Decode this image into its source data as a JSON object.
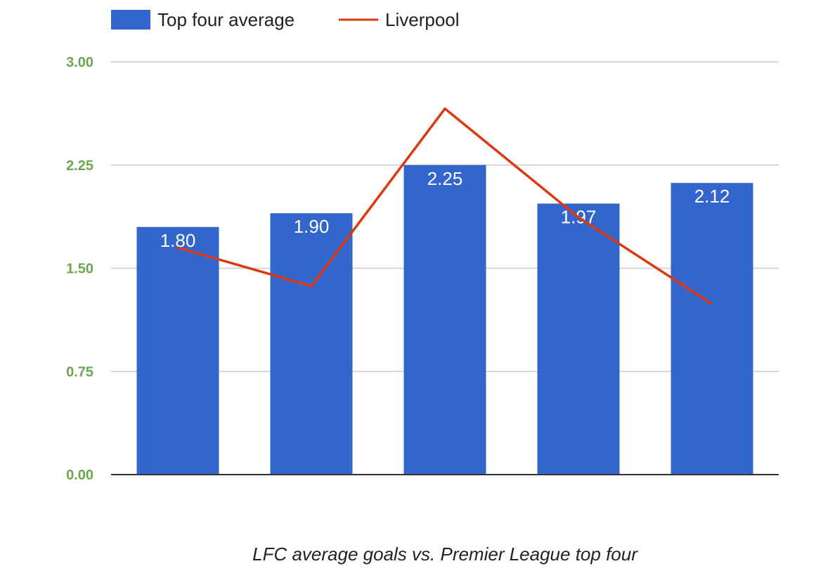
{
  "chart_data": {
    "type": "bar",
    "title": "LFC average goals vs. Premier League top four",
    "xlabel": "",
    "ylabel": "",
    "categories": [
      "",
      "",
      "",
      "",
      ""
    ],
    "series": [
      {
        "name": "Top four average",
        "type": "bar",
        "color": "#3366cc",
        "values": [
          1.8,
          1.9,
          2.25,
          1.97,
          2.12
        ],
        "labels": [
          "1.80",
          "1.90",
          "2.25",
          "1.97",
          "2.12"
        ]
      },
      {
        "name": "Liverpool",
        "type": "line",
        "color": "#dc3912",
        "values": [
          1.65,
          1.37,
          2.66,
          1.87,
          1.24
        ]
      }
    ],
    "ylim": [
      0,
      3
    ],
    "yticks": [
      "0.00",
      "0.75",
      "1.50",
      "2.25",
      "3.00"
    ],
    "ytick_values": [
      0,
      0.75,
      1.5,
      2.25,
      3.0
    ],
    "ytick_color": "#6aa84f",
    "grid": true,
    "legend_position": "top-left"
  }
}
